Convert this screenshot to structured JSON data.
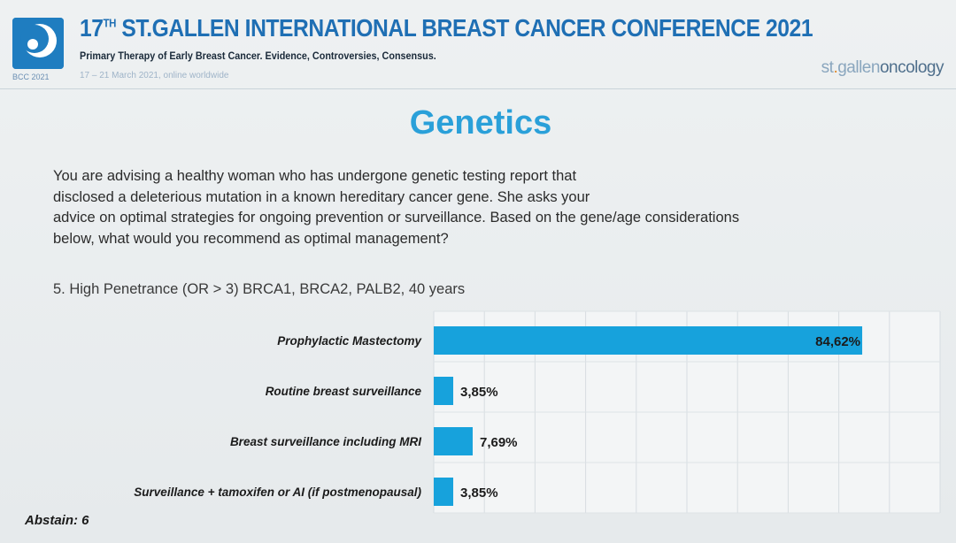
{
  "header": {
    "title_main": "ST.GALLEN INTERNATIONAL BREAST CANCER CONFERENCE 2021",
    "title_number": "17",
    "title_ordinal": "TH",
    "subtitle": "Primary Therapy of Early Breast Cancer. Evidence, Controversies, Consensus.",
    "dates": "17 – 21 March 2021, online worldwide",
    "logo_caption": "BCC 2021",
    "brand_prefix": "st",
    "brand_mid": "gallen",
    "brand_suffix": "oncology"
  },
  "slide": {
    "title": "Genetics",
    "question_lines": [
      "You are advising a healthy woman who has undergone genetic testing report that",
      "disclosed a deleterious mutation in a known hereditary cancer gene.  She asks your",
      "advice on optimal strategies for ongoing prevention or surveillance. Based on the gene/age considerations",
      "below, what would you recommend as optimal  management?"
    ],
    "item_label": "5. High Penetrance (OR > 3) BRCA1, BRCA2, PALB2, 40 years",
    "abstain": "Abstain: 6"
  },
  "colors": {
    "bar": "#17a2dc",
    "title": "#2aa0d9",
    "header_blue": "#1f6fb4"
  },
  "chart_data": {
    "type": "bar",
    "orientation": "horizontal",
    "categories": [
      "Prophylactic Mastectomy",
      "Routine breast surveillance",
      "Breast surveillance including MRI",
      "Surveillance + tamoxifen or AI (if postmenopausal)"
    ],
    "values": [
      84.62,
      3.85,
      7.69,
      3.85
    ],
    "value_labels": [
      "84,62%",
      "3,85%",
      "7,69%",
      "3,85%"
    ],
    "xlim": [
      0,
      100
    ],
    "grid": true,
    "title": "",
    "xlabel": "",
    "ylabel": ""
  }
}
